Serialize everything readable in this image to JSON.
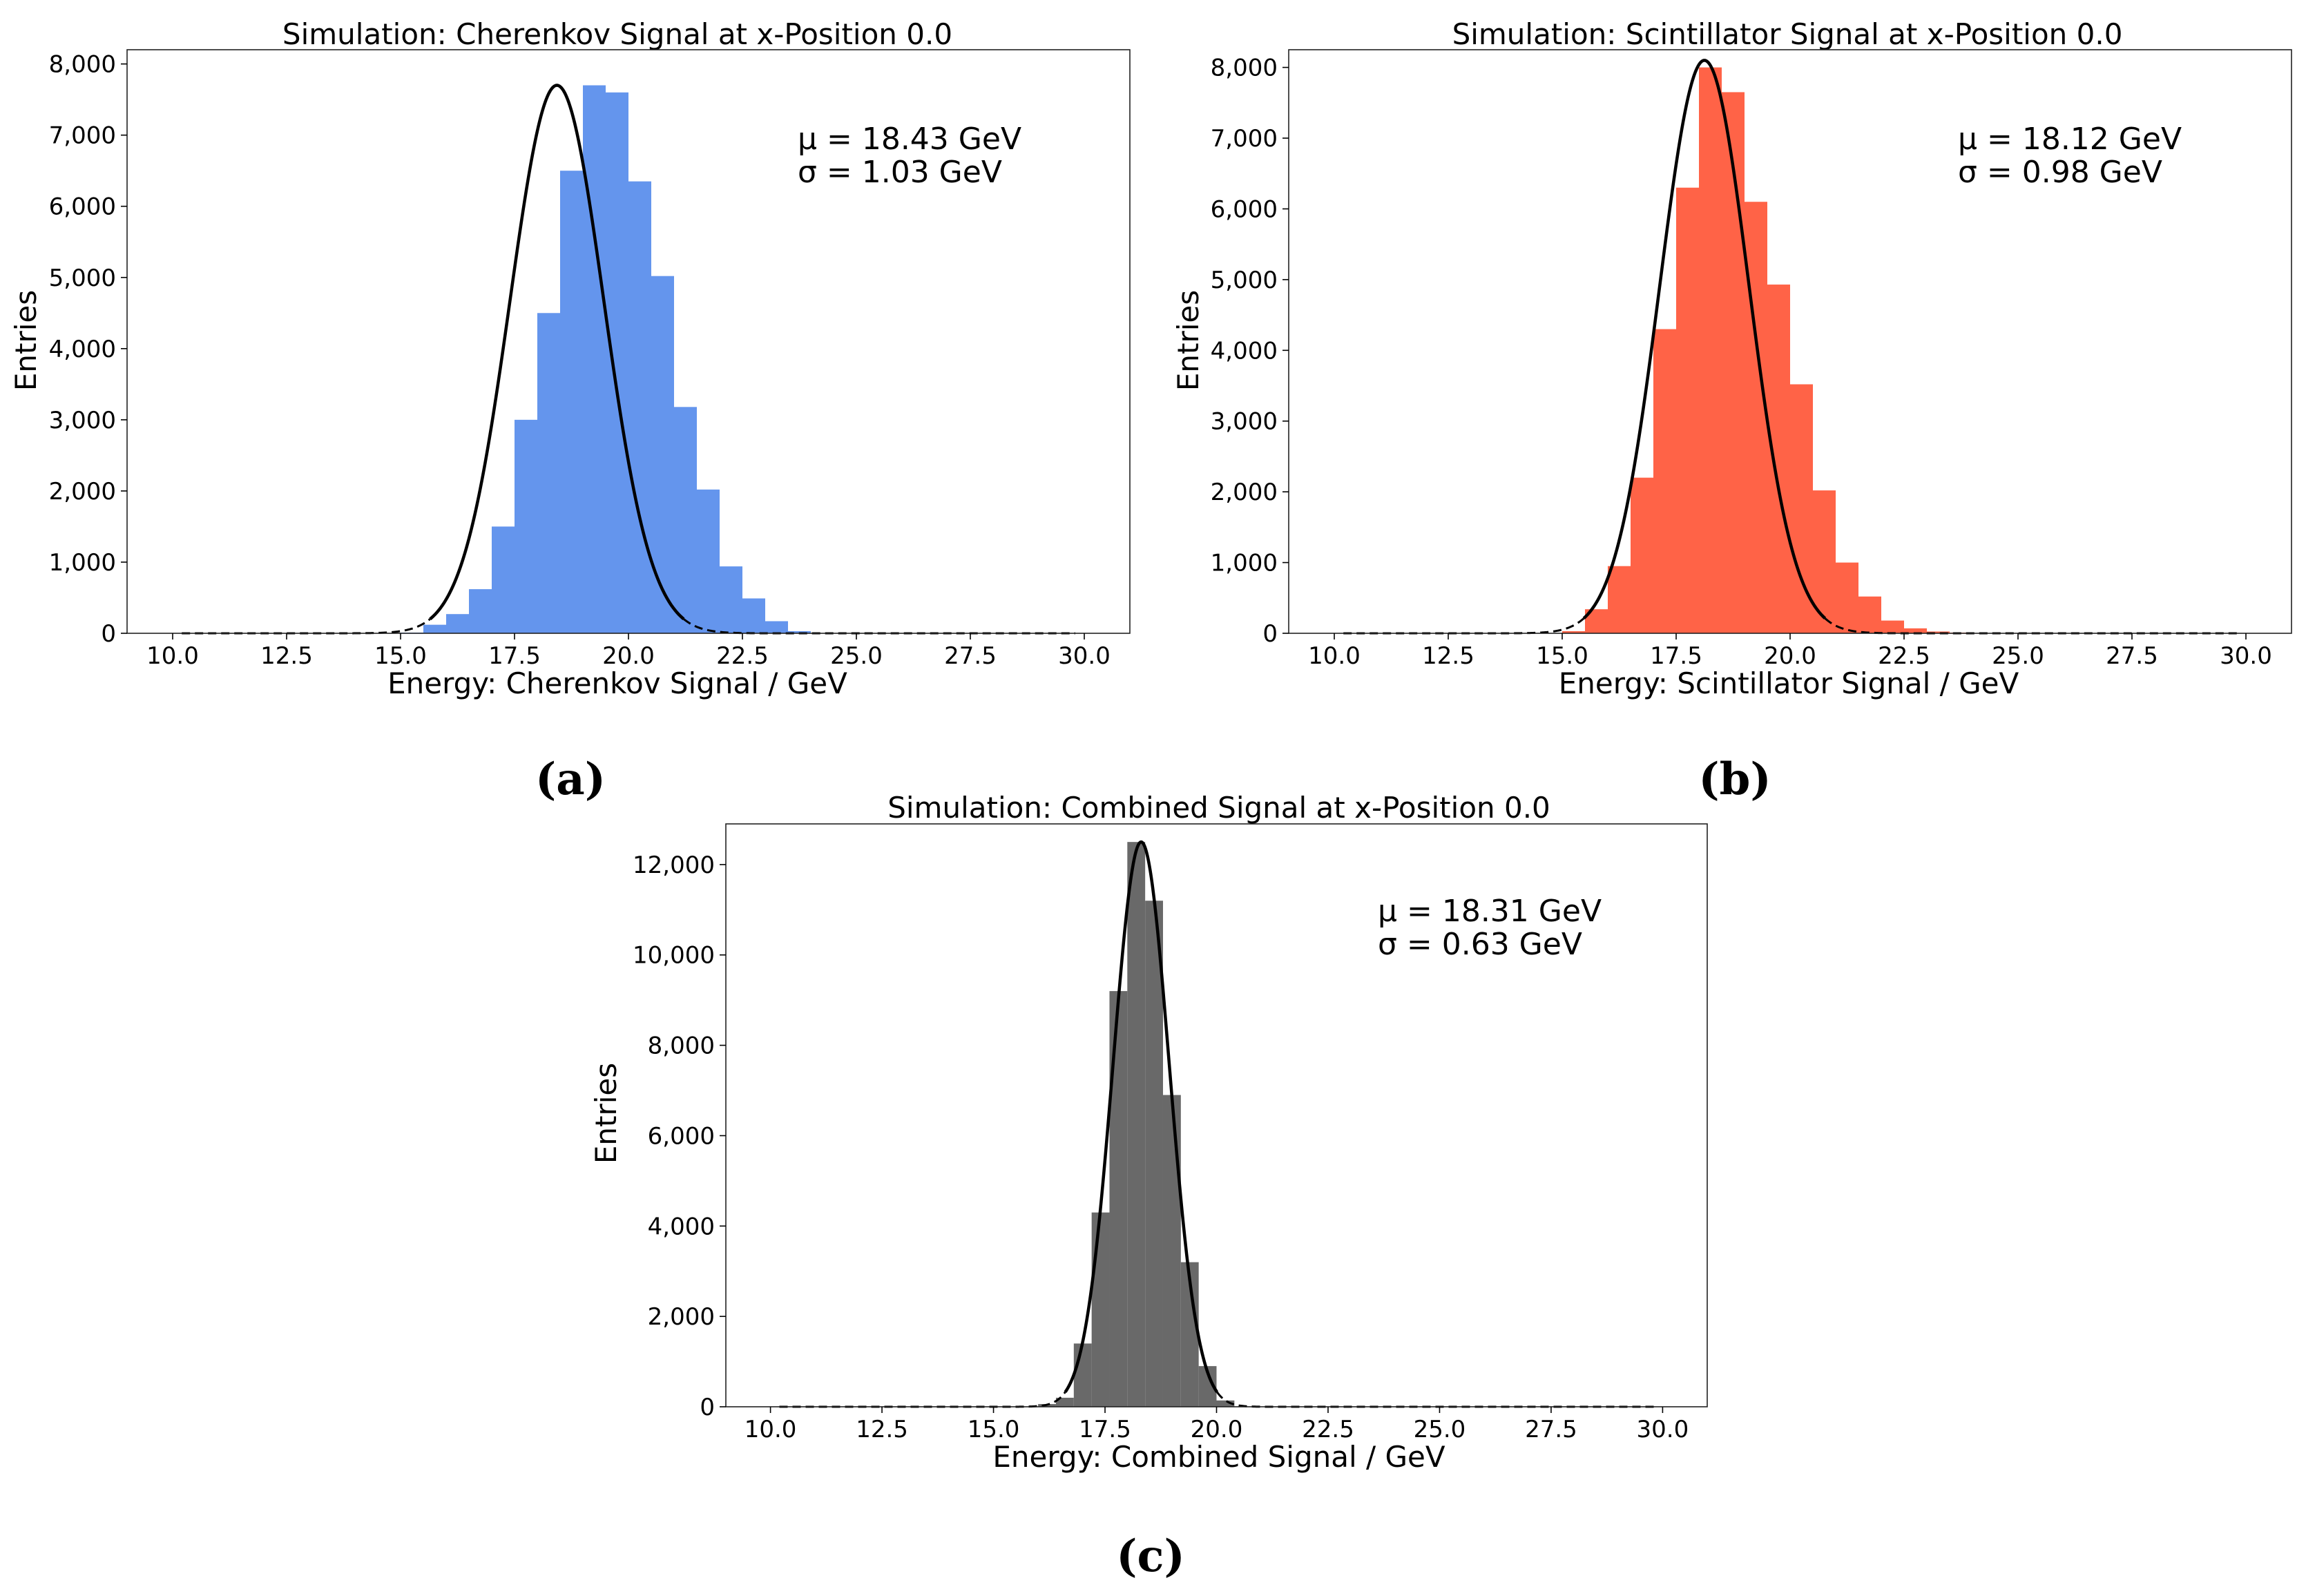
{
  "figure": {
    "captions": [
      "(a)",
      "(b)",
      "(c)"
    ]
  },
  "chart_data": [
    {
      "type": "bar",
      "title": "Simulation: Cherenkov Signal at x-Position 0.0",
      "xlabel": "Energy: Cherenkov Signal / GeV",
      "ylabel": "Entries",
      "xlim": [
        9.0,
        31.0
      ],
      "ylim": [
        0,
        8200
      ],
      "xticks": [
        10.0,
        12.5,
        15.0,
        17.5,
        20.0,
        22.5,
        25.0,
        27.5,
        30.0
      ],
      "xtick_labels": [
        "10.0",
        "12.5",
        "15.0",
        "17.5",
        "20.0",
        "22.5",
        "25.0",
        "27.5",
        "30.0"
      ],
      "yticks": [
        0,
        1000,
        2000,
        3000,
        4000,
        5000,
        6000,
        7000,
        8000
      ],
      "ytick_labels": [
        "0",
        "1,000",
        "2,000",
        "3,000",
        "4,000",
        "5,000",
        "6,000",
        "7,000",
        "8,000"
      ],
      "bar_color": "#6495ed",
      "bin_start": 15.0,
      "bin_width": 0.5,
      "values": [
        10,
        120,
        270,
        620,
        1500,
        3000,
        4500,
        6500,
        7700,
        7600,
        6350,
        5020,
        3180,
        2020,
        940,
        490,
        170,
        30
      ],
      "fit": {
        "mu": 18.43,
        "sigma": 1.03,
        "amplitude": 7700,
        "x_range": [
          10.2,
          29.8
        ]
      },
      "annotation": {
        "mu_text": "μ = 18.43 GeV",
        "sigma_text": "σ = 1.03 GeV"
      }
    },
    {
      "type": "bar",
      "title": "Simulation: Scintillator Signal at x-Position 0.0",
      "xlabel": "Energy: Scintillator Signal / GeV",
      "ylabel": "Entries",
      "xlim": [
        9.0,
        31.0
      ],
      "ylim": [
        0,
        8250
      ],
      "xticks": [
        10.0,
        12.5,
        15.0,
        17.5,
        20.0,
        22.5,
        25.0,
        27.5,
        30.0
      ],
      "xtick_labels": [
        "10.0",
        "12.5",
        "15.0",
        "17.5",
        "20.0",
        "22.5",
        "25.0",
        "27.5",
        "30.0"
      ],
      "yticks": [
        0,
        1000,
        2000,
        3000,
        4000,
        5000,
        6000,
        7000,
        8000
      ],
      "ytick_labels": [
        "0",
        "1,000",
        "2,000",
        "3,000",
        "4,000",
        "5,000",
        "6,000",
        "7,000",
        "8,000"
      ],
      "bar_color": "#ff6347",
      "bin_start": 15.0,
      "bin_width": 0.5,
      "values": [
        30,
        340,
        950,
        2200,
        4300,
        6300,
        8000,
        7650,
        6100,
        4930,
        3520,
        2020,
        1000,
        520,
        180,
        70,
        25,
        10
      ],
      "fit": {
        "mu": 18.12,
        "sigma": 0.98,
        "amplitude": 8100,
        "x_range": [
          10.2,
          29.8
        ]
      },
      "annotation": {
        "mu_text": "μ = 18.12 GeV",
        "sigma_text": "σ = 0.98 GeV"
      }
    },
    {
      "type": "bar",
      "title": "Simulation: Combined Signal at x-Position 0.0",
      "xlabel": "Energy: Combined Signal / GeV",
      "ylabel": "Entries",
      "xlim": [
        9.0,
        31.0
      ],
      "ylim": [
        0,
        12900
      ],
      "xticks": [
        10.0,
        12.5,
        15.0,
        17.5,
        20.0,
        22.5,
        25.0,
        27.5,
        30.0
      ],
      "xtick_labels": [
        "10.0",
        "12.5",
        "15.0",
        "17.5",
        "20.0",
        "22.5",
        "25.0",
        "27.5",
        "30.0"
      ],
      "yticks": [
        0,
        2000,
        4000,
        6000,
        8000,
        10000,
        12000
      ],
      "ytick_labels": [
        "0",
        "2,000",
        "4,000",
        "6,000",
        "8,000",
        "10,000",
        "12,000"
      ],
      "bar_color": "#696969",
      "bin_start": 16.0,
      "bin_width": 0.4,
      "values": [
        60,
        200,
        1400,
        4300,
        9200,
        12500,
        11200,
        6900,
        3200,
        900,
        140
      ],
      "fit": {
        "mu": 18.31,
        "sigma": 0.63,
        "amplitude": 12500,
        "x_range": [
          10.2,
          29.8
        ]
      },
      "annotation": {
        "mu_text": "μ = 18.31 GeV",
        "sigma_text": "σ = 0.63 GeV"
      }
    }
  ]
}
